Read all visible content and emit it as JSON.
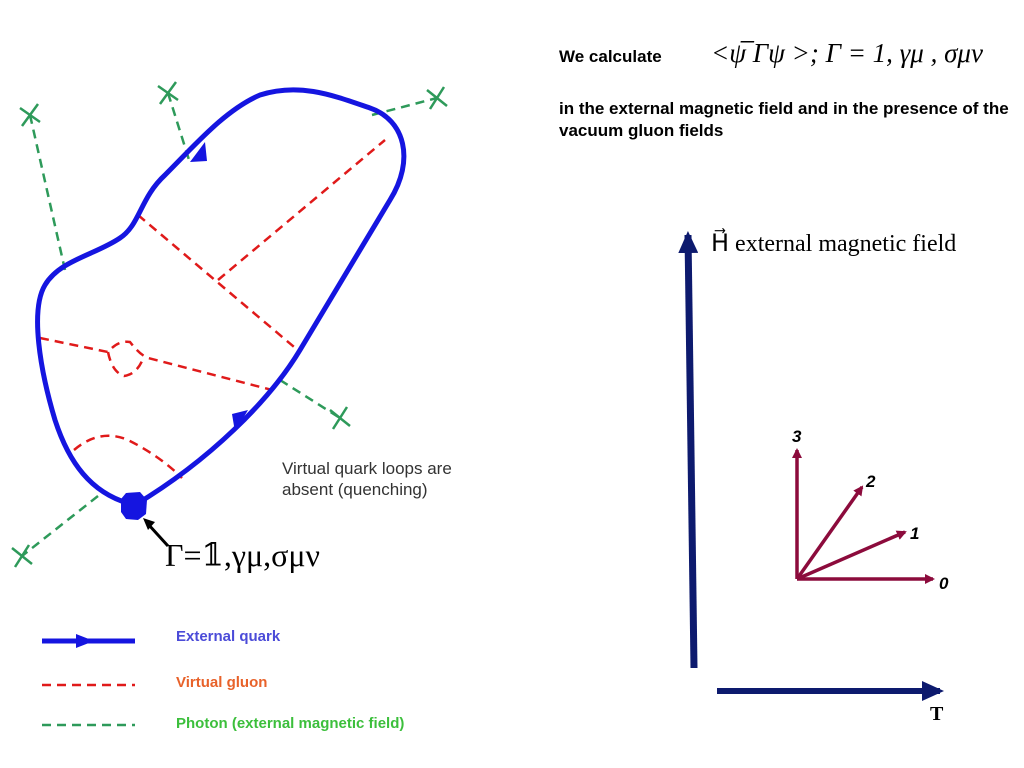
{
  "colors": {
    "quark": "#1515e0",
    "gluon": "#e01a1a",
    "photon": "#2e9a5a",
    "axis": "#0d1a6e",
    "vector": "#8c0b3c",
    "legend_quark_text": "#4b4bd8",
    "legend_gluon_text": "#e8622a",
    "legend_photon_text": "#3cbf3c"
  },
  "header": {
    "calc_label": "We calculate",
    "formula": "<ψ̅ Γψ >;  Γ = 1, γμ , σμν",
    "subtitle": "in the external magnetic field and in the presence of  the vacuum gluon fields"
  },
  "diagram": {
    "note": "Virtual quark loops are absent (quenching)",
    "vertex_formula": "Γ=𝟙,γμ,σμν"
  },
  "legend": {
    "external_quark": "External quark",
    "virtual_gluon": "Virtual gluon",
    "photon": "Photon (external magnetic field)"
  },
  "axes": {
    "vertical_label": "H⃗ external magnetic field",
    "horizontal_label": "T"
  },
  "vectors": [
    {
      "label": "0"
    },
    {
      "label": "1"
    },
    {
      "label": "2"
    },
    {
      "label": "3"
    }
  ]
}
